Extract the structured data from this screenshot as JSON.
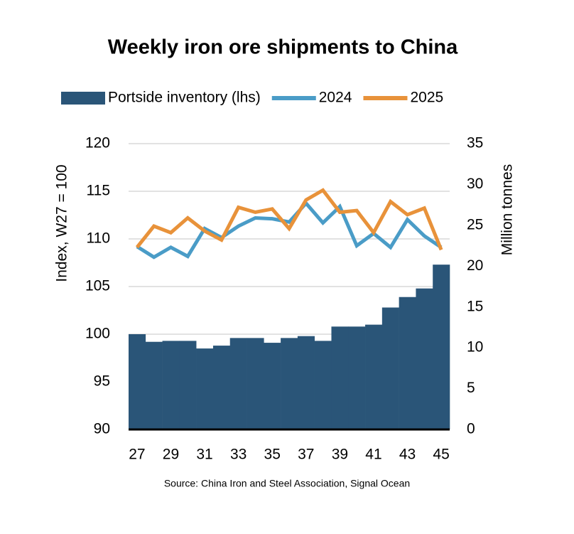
{
  "chart_data": {
    "type": "bar-line",
    "title": "Weekly iron ore shipments to China",
    "y_label": "Index, W27 = 100",
    "y2_label": "Million tonnes",
    "source": "Source: China Iron and Steel Association, Signal Ocean",
    "categories": [
      27,
      null,
      29,
      null,
      31,
      null,
      33,
      null,
      35,
      null,
      37,
      null,
      39,
      null,
      41,
      null,
      43,
      null,
      45
    ],
    "series": [
      {
        "name": "Portside inventory (lhs)",
        "type": "bar",
        "color": "#2a5578",
        "values": [
          100.0,
          99.2,
          99.3,
          99.3,
          98.5,
          98.8,
          99.6,
          99.6,
          99.1,
          99.6,
          99.8,
          99.3,
          100.8,
          100.8,
          101.0,
          102.8,
          103.9,
          104.8,
          107.3
        ]
      },
      {
        "name": "2024",
        "type": "line",
        "axis": "y2",
        "color": "#4a9cc7",
        "values": [
          22.4,
          21.1,
          22.3,
          21.2,
          24.6,
          23.5,
          24.9,
          25.9,
          25.8,
          25.4,
          27.7,
          25.3,
          27.3,
          22.5,
          24.0,
          22.3,
          25.7,
          23.7,
          22.3
        ]
      },
      {
        "name": "2025",
        "type": "line",
        "axis": "y2",
        "color": "#e8923a",
        "values": [
          22.3,
          24.9,
          24.1,
          25.9,
          24.3,
          23.2,
          27.2,
          26.6,
          27.0,
          24.6,
          28.1,
          29.3,
          26.6,
          26.8,
          24.1,
          27.9,
          26.3,
          27.1,
          22.0
        ]
      }
    ],
    "ylim": [
      90,
      120
    ],
    "yticks": [
      90,
      95,
      100,
      105,
      110,
      115,
      120
    ],
    "y2lim": [
      0,
      35
    ],
    "y2ticks": [
      0,
      5,
      10,
      15,
      20,
      25,
      30,
      35
    ],
    "grid": true
  }
}
